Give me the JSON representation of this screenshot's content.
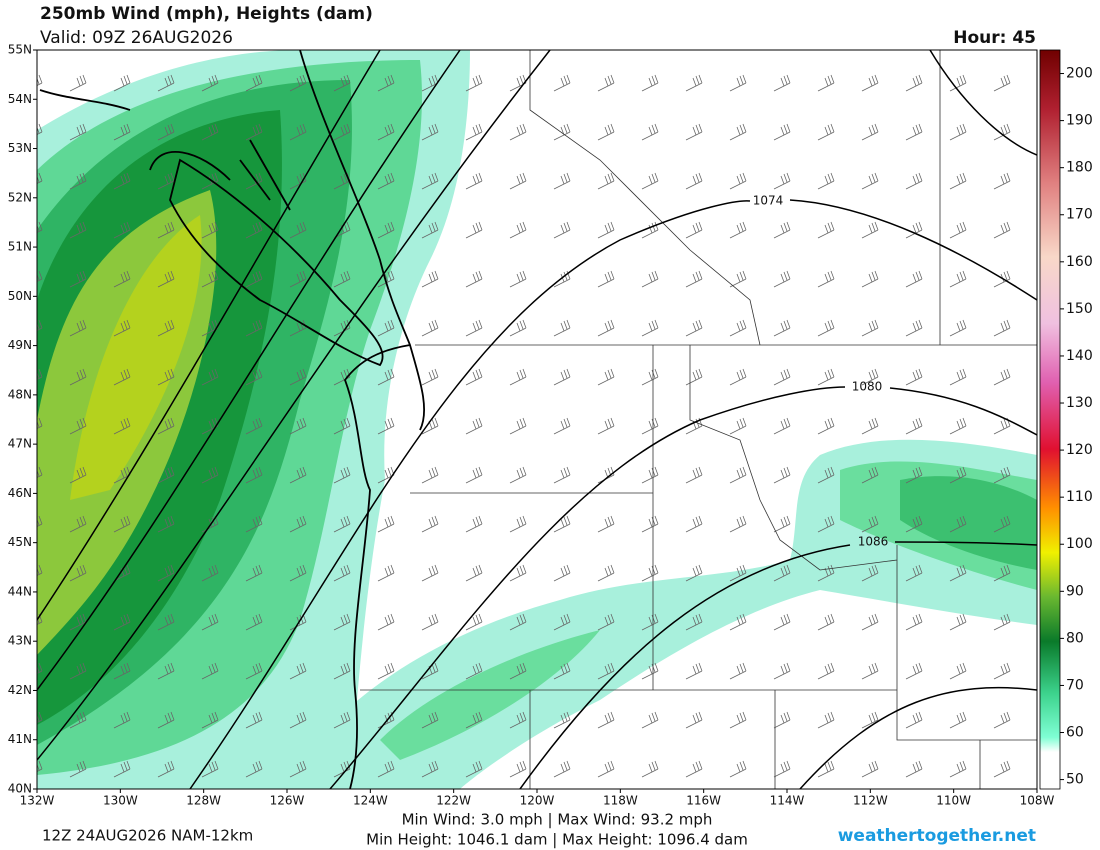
{
  "header": {
    "title": "250mb Wind (mph), Heights (dam)",
    "valid": "Valid: 09Z 26AUG2026",
    "hour": "Hour: 45"
  },
  "map": {
    "lat_ticks": [
      {
        "value": 55,
        "label": "55N"
      },
      {
        "value": 54,
        "label": "54N"
      },
      {
        "value": 53,
        "label": "53N"
      },
      {
        "value": 52,
        "label": "52N"
      },
      {
        "value": 51,
        "label": "51N"
      },
      {
        "value": 50,
        "label": "50N"
      },
      {
        "value": 49,
        "label": "49N"
      },
      {
        "value": 48,
        "label": "48N"
      },
      {
        "value": 47,
        "label": "47N"
      },
      {
        "value": 46,
        "label": "46N"
      },
      {
        "value": 45,
        "label": "45N"
      },
      {
        "value": 44,
        "label": "44N"
      },
      {
        "value": 43,
        "label": "43N"
      },
      {
        "value": 42,
        "label": "42N"
      },
      {
        "value": 41,
        "label": "41N"
      },
      {
        "value": 40,
        "label": "40N"
      }
    ],
    "lon_ticks": [
      {
        "value": 132,
        "label": "132W"
      },
      {
        "value": 130,
        "label": "130W"
      },
      {
        "value": 128,
        "label": "128W"
      },
      {
        "value": 126,
        "label": "126W"
      },
      {
        "value": 124,
        "label": "124W"
      },
      {
        "value": 122,
        "label": "122W"
      },
      {
        "value": 120,
        "label": "120W"
      },
      {
        "value": 118,
        "label": "118W"
      },
      {
        "value": 116,
        "label": "116W"
      },
      {
        "value": 114,
        "label": "114W"
      },
      {
        "value": 112,
        "label": "112W"
      },
      {
        "value": 110,
        "label": "110W"
      },
      {
        "value": 108,
        "label": "108W"
      }
    ],
    "contour_labels": [
      1074,
      1080,
      1086
    ]
  },
  "colorbar": {
    "lim": [
      48,
      205
    ],
    "ticks": [
      50,
      60,
      70,
      80,
      90,
      100,
      110,
      120,
      130,
      140,
      150,
      160,
      170,
      180,
      190,
      200
    ]
  },
  "footer": {
    "run": "12Z 24AUG2026 NAM-12km",
    "wind": "Min Wind:   3.0 mph | Max Wind:  93.2 mph",
    "height": "Min Height: 1046.1 dam | Max Height: 1096.4 dam",
    "site": "weathertogether.net"
  }
}
